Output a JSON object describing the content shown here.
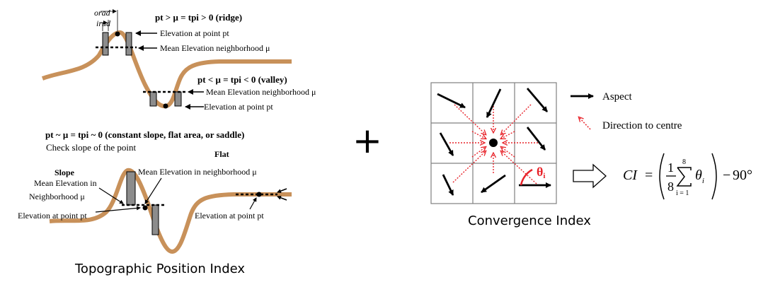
{
  "tpi": {
    "caption": "Topographic Position Index",
    "top": {
      "orad": "orad",
      "irad": "irad",
      "ridge_eq": "pt > μ = tpi > 0 (ridge)",
      "elev_point": "Elevation at point pt",
      "mean_elev": "Mean Elevation neighborhood μ",
      "valley_eq": "pt < μ = tpi  < 0 (valley)",
      "mean_elev_valley": "Mean Elevation neighborhood μ",
      "elev_point_valley": "Elevation at point pt"
    },
    "middle": {
      "constant_eq": "pt ~ μ = tpi ~ 0 (constant slope, flat area, or saddle)",
      "check_slope": "Check slope of the point"
    },
    "bottom": {
      "flat": "Flat",
      "slope": "Slope",
      "mean_elev_in_1": "Mean Elevation in",
      "mean_elev_in_2": "Neighborhood μ",
      "mean_elev_in_neighborhood": "Mean Elevation in neighborhood  μ",
      "elev_point_left": "Elevation at point pt",
      "elev_point_right": "Elevation at point pt"
    }
  },
  "plus_sign": "+",
  "ci": {
    "caption": "Convergence Index",
    "legend_aspect": "Aspect",
    "legend_direction": "Direction to centre",
    "theta_label": "θ",
    "theta_sub": "i",
    "formula": {
      "lhs": "CI",
      "eq": "=",
      "num": "1",
      "den": "8",
      "sum_top": "8",
      "sum_bottom": "i = 1",
      "theta": "θ",
      "theta_sub": "i",
      "minus": "−",
      "deg": "90°"
    }
  },
  "colors": {
    "terrain": "#c8915a",
    "red": "#e8232a",
    "bar_fill": "#8c8c8c",
    "grid": "#808080"
  }
}
